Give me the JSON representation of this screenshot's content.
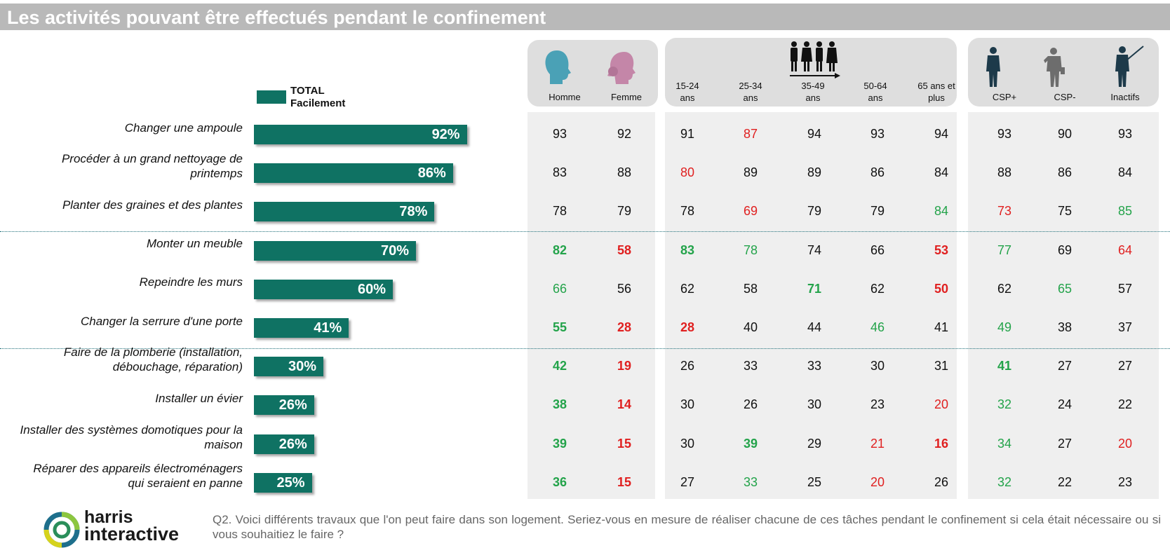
{
  "title": "Les activités pouvant être effectués pendant le confinement",
  "legend": {
    "line1": "TOTAL",
    "line2": "Facilement",
    "color": "#0f7263"
  },
  "columns": [
    {
      "label": "Homme",
      "icon": "man-head-icon"
    },
    {
      "label": "Femme",
      "icon": "woman-head-icon"
    },
    {
      "label": "15-24 ans"
    },
    {
      "label": "25-34 ans"
    },
    {
      "label": "35-49 ans"
    },
    {
      "label": "50-64 ans"
    },
    {
      "label": "65 ans et plus"
    },
    {
      "label": "CSP+",
      "icon": "businessman-icon"
    },
    {
      "label": "CSP-",
      "icon": "worker-icon"
    },
    {
      "label": "Inactifs",
      "icon": "fisherman-icon"
    }
  ],
  "age_group_icon": "people-group-arrow-icon",
  "colors": {
    "bar": "#0f7263",
    "green": "#23a34a",
    "red": "#e02020",
    "neutral": "#111111"
  },
  "chart_data": {
    "type": "bar",
    "orientation": "horizontal",
    "categories": [
      "Changer une ampoule",
      "Procéder à un grand nettoyage de printemps",
      "Planter des graines et des plantes",
      "Monter un meuble",
      "Repeindre les murs",
      "Changer la serrure d'une porte",
      "Faire de la plomberie (installation, débouchage, réparation)",
      "Installer un évier",
      "Installer des systèmes domotiques pour la maison",
      "Réparer des appareils électroménagers qui seraient en panne"
    ],
    "category_lines": [
      [
        "Changer une ampoule"
      ],
      [
        "Procéder à un grand nettoyage de",
        "printemps"
      ],
      [
        "Planter des graines et des plantes"
      ],
      [
        "Monter un meuble"
      ],
      [
        "Repeindre les murs"
      ],
      [
        "Changer la serrure d'une porte"
      ],
      [
        "Faire de la plomberie (installation,",
        "débouchage, réparation)"
      ],
      [
        "Installer un évier"
      ],
      [
        "Installer des systèmes domotiques pour la",
        "maison"
      ],
      [
        "Réparer des appareils électroménagers",
        "qui seraient en panne"
      ]
    ],
    "series": [
      {
        "name": "TOTAL Facilement",
        "values": [
          92,
          86,
          78,
          70,
          60,
          41,
          30,
          26,
          26,
          25
        ]
      }
    ],
    "value_labels": [
      "92%",
      "86%",
      "78%",
      "70%",
      "60%",
      "41%",
      "30%",
      "26%",
      "26%",
      "25%"
    ],
    "xlim": [
      0,
      100
    ],
    "table": {
      "columns": [
        "Homme",
        "Femme",
        "15-24 ans",
        "25-34 ans",
        "35-49 ans",
        "50-64 ans",
        "65 ans et plus",
        "CSP+",
        "CSP-",
        "Inactifs"
      ],
      "rows": [
        [
          93,
          92,
          91,
          87,
          94,
          93,
          94,
          93,
          90,
          93
        ],
        [
          83,
          88,
          80,
          89,
          89,
          86,
          84,
          88,
          86,
          84
        ],
        [
          78,
          79,
          78,
          69,
          79,
          79,
          84,
          73,
          75,
          85
        ],
        [
          82,
          58,
          83,
          78,
          74,
          66,
          53,
          77,
          69,
          64
        ],
        [
          66,
          56,
          62,
          58,
          71,
          62,
          50,
          62,
          65,
          57
        ],
        [
          55,
          28,
          28,
          40,
          44,
          46,
          41,
          49,
          38,
          37
        ],
        [
          42,
          19,
          26,
          33,
          33,
          30,
          31,
          41,
          27,
          27
        ],
        [
          38,
          14,
          30,
          26,
          30,
          23,
          20,
          32,
          24,
          22
        ],
        [
          39,
          15,
          30,
          39,
          29,
          21,
          16,
          34,
          27,
          20
        ],
        [
          36,
          15,
          27,
          33,
          25,
          20,
          26,
          32,
          22,
          23
        ]
      ],
      "styles": [
        [
          "n",
          "n",
          "n",
          "r",
          "n",
          "n",
          "n",
          "n",
          "n",
          "n"
        ],
        [
          "n",
          "n",
          "r",
          "n",
          "n",
          "n",
          "n",
          "n",
          "n",
          "n"
        ],
        [
          "n",
          "n",
          "n",
          "r",
          "n",
          "n",
          "g",
          "r",
          "n",
          "g"
        ],
        [
          "G",
          "R",
          "G",
          "g",
          "n",
          "n",
          "R",
          "g",
          "n",
          "r"
        ],
        [
          "g",
          "n",
          "n",
          "n",
          "G",
          "n",
          "R",
          "n",
          "g",
          "n"
        ],
        [
          "G",
          "R",
          "R",
          "n",
          "n",
          "g",
          "n",
          "g",
          "n",
          "n"
        ],
        [
          "G",
          "R",
          "n",
          "n",
          "n",
          "n",
          "n",
          "G",
          "n",
          "n"
        ],
        [
          "G",
          "R",
          "n",
          "n",
          "n",
          "n",
          "r",
          "g",
          "n",
          "n"
        ],
        [
          "G",
          "R",
          "n",
          "G",
          "n",
          "r",
          "R",
          "g",
          "n",
          "r"
        ],
        [
          "G",
          "R",
          "n",
          "g",
          "n",
          "r",
          "n",
          "g",
          "n",
          "n"
        ]
      ]
    }
  },
  "footer": {
    "logo_line1": "harris",
    "logo_line2": "interactive",
    "question": "Q2. Voici différents travaux que l'on peut faire dans son logement. Seriez-vous en mesure de réaliser chacune de ces tâches pendant le confinement si cela était nécessaire ou si vous souhaitiez le faire ?"
  }
}
